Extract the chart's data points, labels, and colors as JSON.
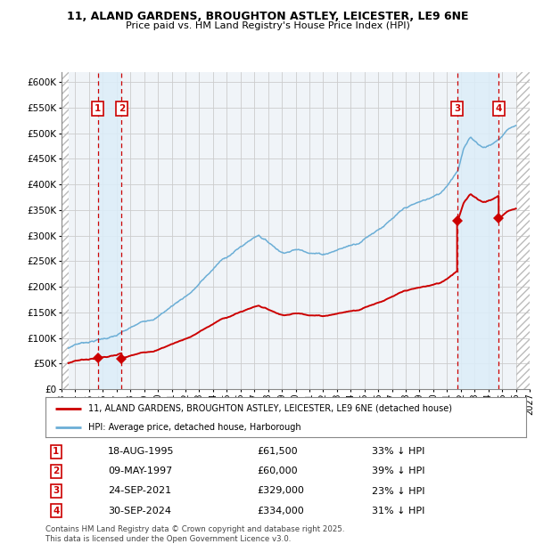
{
  "title_line1": "11, ALAND GARDENS, BROUGHTON ASTLEY, LEICESTER, LE9 6NE",
  "title_line2": "Price paid vs. HM Land Registry's House Price Index (HPI)",
  "ylim": [
    0,
    620000
  ],
  "yticks": [
    0,
    50000,
    100000,
    150000,
    200000,
    250000,
    300000,
    350000,
    400000,
    450000,
    500000,
    550000,
    600000
  ],
  "ytick_labels": [
    "£0",
    "£50K",
    "£100K",
    "£150K",
    "£200K",
    "£250K",
    "£300K",
    "£350K",
    "£400K",
    "£450K",
    "£500K",
    "£550K",
    "£600K"
  ],
  "xlim": [
    1993,
    2027
  ],
  "xticks": [
    1993,
    1994,
    1995,
    1996,
    1997,
    1998,
    1999,
    2000,
    2001,
    2002,
    2003,
    2004,
    2005,
    2006,
    2007,
    2008,
    2009,
    2010,
    2011,
    2012,
    2013,
    2014,
    2015,
    2016,
    2017,
    2018,
    2019,
    2020,
    2021,
    2022,
    2023,
    2024,
    2025,
    2026,
    2027
  ],
  "hpi_color": "#6baed6",
  "price_color": "#cc0000",
  "grid_color": "#cccccc",
  "transactions": [
    {
      "num": 1,
      "date_label": "18-AUG-1995",
      "year": 1995.63,
      "price": 61500,
      "pct": "33%",
      "direction": "↓"
    },
    {
      "num": 2,
      "date_label": "09-MAY-1997",
      "year": 1997.36,
      "price": 60000,
      "pct": "39%",
      "direction": "↓"
    },
    {
      "num": 3,
      "date_label": "24-SEP-2021",
      "year": 2021.73,
      "price": 329000,
      "pct": "23%",
      "direction": "↓"
    },
    {
      "num": 4,
      "date_label": "30-SEP-2024",
      "year": 2024.75,
      "price": 334000,
      "pct": "31%",
      "direction": "↓"
    }
  ],
  "legend_line1": "11, ALAND GARDENS, BROUGHTON ASTLEY, LEICESTER, LE9 6NE (detached house)",
  "legend_line2": "HPI: Average price, detached house, Harborough",
  "footnote": "Contains HM Land Registry data © Crown copyright and database right 2025.\nThis data is licensed under the Open Government Licence v3.0.",
  "bg_color": "#ffffff",
  "plot_bg_color": "#f0f4f8",
  "hatch_color": "#bbbbbb",
  "shade_color": "#dceef9"
}
